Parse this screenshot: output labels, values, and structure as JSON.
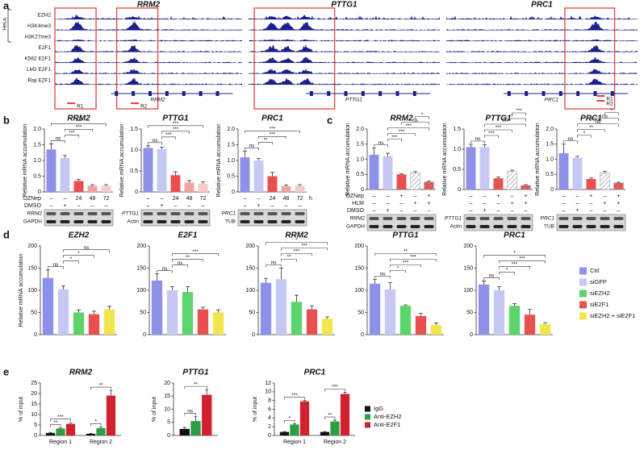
{
  "panel_labels": [
    "a",
    "b",
    "c",
    "d",
    "e"
  ],
  "panel_a": {
    "cell_line": "HeLa",
    "tracks": [
      "EZH2",
      "H3K4me3",
      "H3K27me3",
      "E2F1",
      "K562 E2F1",
      "LM2 E2F1",
      "Raji E2F1"
    ],
    "loci": [
      {
        "title": "RRM2",
        "gene": "RRM2",
        "regions": [
          "R1",
          "R2"
        ]
      },
      {
        "title": "PTTG1",
        "gene": "PTTG1"
      },
      {
        "title": "PRC1",
        "gene": "PRC1",
        "regions": [
          "R1",
          "R2"
        ]
      }
    ]
  },
  "legend_d": [
    {
      "name": "Ctrl",
      "color": "#8e91ea"
    },
    {
      "name": "siGFP",
      "color": "#c6c8f4"
    },
    {
      "name": "siEZH2",
      "color": "#5cd66c"
    },
    {
      "name": "siE2F1",
      "color": "#e8504f"
    },
    {
      "name": "siEZH2 + siE2F1",
      "color": "#f2e64c"
    }
  ],
  "legend_e": [
    {
      "name": "IgG",
      "color": "#111111"
    },
    {
      "name": "Anti-EZH2",
      "color": "#2e9e44"
    },
    {
      "name": "Anti-E2F1",
      "color": "#d1202f"
    }
  ],
  "chart_data": [
    {
      "type": "bar",
      "title": "RRM2",
      "y_label": "Relative mRNA accumulation",
      "values": [
        1.35,
        1.08,
        0.35,
        0.2,
        0.2
      ],
      "errors": [
        0.18,
        0.08,
        0.05,
        0.03,
        0.03
      ],
      "colors": [
        "#8e91ea",
        "#c6c8f4",
        "#e8504f",
        "#f3a19e",
        "#f8cbc8"
      ],
      "ylim": [
        0,
        2
      ],
      "yticks": [
        0,
        0.5,
        {
          "value": 1,
          "label": "1.0"
        },
        1.5,
        {
          "value": 2,
          "label": "2.0"
        }
      ],
      "annotations": [
        {
          "label": "ns",
          "pair": [
            0,
            1
          ]
        },
        {
          "label": "***",
          "pair": [
            1,
            2
          ]
        },
        {
          "label": "***",
          "pair": [
            1,
            3
          ]
        },
        {
          "label": "***",
          "pair": [
            0,
            4
          ]
        }
      ],
      "condition_names": [
        "DZNep",
        "DMSO"
      ],
      "conditions": [
        [
          "–",
          "–",
          "24",
          "48",
          "72"
        ],
        [
          "–",
          "+",
          "–",
          "–",
          "–"
        ]
      ],
      "blot_labels": [
        "RRM2",
        "GAPDH"
      ]
    },
    {
      "type": "bar",
      "title": "PTTG1",
      "y_label": "Relative mRNA accumulation",
      "values": [
        1.05,
        1.02,
        0.4,
        0.22,
        0.2
      ],
      "errors": [
        0.05,
        0.05,
        0.08,
        0.05,
        0.04
      ],
      "colors": [
        "#8e91ea",
        "#c6c8f4",
        "#e8504f",
        "#f3a19e",
        "#f8cbc8"
      ],
      "ylim": [
        0,
        1.5
      ],
      "yticks": [
        0,
        0.5,
        {
          "value": 1,
          "label": "1.0"
        },
        1.5
      ],
      "annotations": [
        {
          "label": "ns",
          "pair": [
            0,
            1
          ]
        },
        {
          "label": "***",
          "pair": [
            1,
            2
          ]
        },
        {
          "label": "***",
          "pair": [
            1,
            3
          ]
        },
        {
          "label": "***",
          "pair": [
            0,
            4
          ]
        }
      ],
      "conditions": [
        [
          "–",
          "–",
          "24",
          "48",
          "72"
        ],
        [
          "–",
          "+",
          "–",
          "–",
          "–"
        ]
      ],
      "blot_labels": [
        "PTTG1",
        "Actin"
      ]
    },
    {
      "type": "bar",
      "title": "PRC1",
      "y_label": "Relative mRNA accumulation",
      "values": [
        1.1,
        1.0,
        0.5,
        0.18,
        0.2
      ],
      "errors": [
        0.2,
        0.06,
        0.12,
        0.04,
        0.03
      ],
      "colors": [
        "#8e91ea",
        "#c6c8f4",
        "#e8504f",
        "#f3a19e",
        "#f8cbc8"
      ],
      "ylim": [
        0,
        2
      ],
      "yticks": [
        0,
        0.5,
        {
          "value": 1,
          "label": "1.0"
        },
        1.5,
        {
          "value": 2,
          "label": "2.0"
        }
      ],
      "annotations": [
        {
          "label": "ns",
          "pair": [
            0,
            1
          ]
        },
        {
          "label": "**",
          "pair": [
            1,
            2
          ]
        },
        {
          "label": "***",
          "pair": [
            1,
            3
          ]
        },
        {
          "label": "***",
          "pair": [
            0,
            4
          ]
        }
      ],
      "conditions": [
        [
          "–",
          "–",
          "24",
          "48",
          "72"
        ],
        [
          "–",
          "+",
          "–",
          "–",
          "–"
        ]
      ],
      "condition_unit": "h",
      "blot_labels": [
        "PRC1",
        "TUB"
      ]
    },
    {
      "type": "bar",
      "title": "RRM2",
      "y_label": "Relative mRNA accumulation",
      "values": [
        1.15,
        1.1,
        0.5,
        0.55,
        0.25
      ],
      "errors": [
        0.22,
        0.1,
        0.02,
        0.04,
        0.03
      ],
      "colors": [
        "#8e91ea",
        "#c6c8f4",
        "#e8504f",
        "#ffffff",
        "#e8504f"
      ],
      "hatched": [
        false,
        false,
        false,
        true,
        true
      ],
      "ylim": [
        0,
        2
      ],
      "yticks": [
        0,
        0.5,
        {
          "value": 1,
          "label": "1.0"
        },
        1.5,
        {
          "value": 2,
          "label": "2.0"
        }
      ],
      "annotations": [
        {
          "label": "ns",
          "pair": [
            0,
            1
          ]
        },
        {
          "label": "***",
          "pair": [
            1,
            2
          ]
        },
        {
          "label": "***",
          "pair": [
            1,
            3
          ]
        },
        {
          "label": "***",
          "pair": [
            1,
            4
          ]
        },
        {
          "label": "ns",
          "pair": [
            2,
            4
          ]
        },
        {
          "label": "*",
          "pair": [
            3,
            4
          ]
        }
      ],
      "condition_names": [
        "DZNep",
        "HLM",
        "DMSO"
      ],
      "conditions": [
        [
          "–",
          "–",
          "+",
          "–",
          "+"
        ],
        [
          "–",
          "–",
          "–",
          "+",
          "+"
        ],
        [
          "–",
          "+",
          "–",
          "–",
          "–"
        ]
      ],
      "blot_labels": [
        "RRM2",
        "GAPDH"
      ]
    },
    {
      "type": "bar",
      "title": "PTTG1",
      "y_label": "Relative mRNA accumulation",
      "values": [
        1.05,
        1.05,
        0.28,
        0.45,
        0.1
      ],
      "errors": [
        0.07,
        0.06,
        0.03,
        0.03,
        0.02
      ],
      "colors": [
        "#8e91ea",
        "#c6c8f4",
        "#e8504f",
        "#ffffff",
        "#e8504f"
      ],
      "hatched": [
        false,
        false,
        false,
        true,
        true
      ],
      "ylim": [
        0,
        1.5
      ],
      "yticks": [
        0,
        0.5,
        {
          "value": 1,
          "label": "1.0"
        },
        1.5
      ],
      "annotations": [
        {
          "label": "ns",
          "pair": [
            0,
            1
          ]
        },
        {
          "label": "***",
          "pair": [
            1,
            2
          ]
        },
        {
          "label": "***",
          "pair": [
            1,
            3
          ]
        },
        {
          "label": "***",
          "pair": [
            1,
            4
          ]
        },
        {
          "label": "*",
          "pair": [
            2,
            4
          ]
        },
        {
          "label": "***",
          "pair": [
            3,
            4
          ]
        }
      ],
      "conditions": [
        [
          "–",
          "–",
          "+",
          "–",
          "+"
        ],
        [
          "–",
          "–",
          "–",
          "+",
          "+"
        ],
        [
          "–",
          "+",
          "–",
          "–",
          "–"
        ]
      ],
      "blot_labels": [
        "PTTG1",
        "Actin"
      ]
    },
    {
      "type": "bar",
      "title": "PRC1",
      "y_label": "Relative mRNA accumulation",
      "values": [
        1.2,
        1.05,
        0.35,
        0.55,
        0.22
      ],
      "errors": [
        0.3,
        0.05,
        0.03,
        0.05,
        0.02
      ],
      "colors": [
        "#8e91ea",
        "#c6c8f4",
        "#e8504f",
        "#ffffff",
        "#e8504f"
      ],
      "hatched": [
        false,
        false,
        false,
        true,
        true
      ],
      "ylim": [
        0,
        2
      ],
      "yticks": [
        0,
        0.5,
        {
          "value": 1,
          "label": "1.0"
        },
        1.5,
        {
          "value": 2,
          "label": "2.0"
        }
      ],
      "annotations": [
        {
          "label": "ns",
          "pair": [
            0,
            1
          ]
        },
        {
          "label": "*",
          "pair": [
            1,
            2
          ]
        },
        {
          "label": "**",
          "pair": [
            1,
            3
          ]
        },
        {
          "label": "ns",
          "pair": [
            1,
            4
          ]
        },
        {
          "label": "ns",
          "pair": [
            2,
            4
          ]
        },
        {
          "label": "*",
          "pair": [
            3,
            4
          ]
        }
      ],
      "conditions": [
        [
          "–",
          "–",
          "+",
          "–",
          "+"
        ],
        [
          "–",
          "–",
          "–",
          "+",
          "+"
        ],
        [
          "–",
          "+",
          "–",
          "–",
          "–"
        ]
      ],
      "blot_labels": [
        "PRC1",
        "TUB"
      ]
    },
    {
      "type": "bar",
      "title": "EZH2",
      "y_label": "Relative mRNA accumulation",
      "values": [
        128,
        102,
        50,
        46,
        57
      ],
      "errors": [
        18,
        8,
        6,
        7,
        7
      ],
      "colors": [
        "#8e91ea",
        "#c6c8f4",
        "#5cd66c",
        "#e8504f",
        "#f2e64c"
      ],
      "ylim": [
        0,
        200
      ],
      "yticks": [
        0,
        50,
        100,
        150,
        200
      ],
      "annotations": [
        {
          "label": "ns",
          "pair": [
            0,
            1
          ]
        },
        {
          "label": "*",
          "pair": [
            1,
            2
          ]
        },
        {
          "label": "*",
          "pair": [
            1,
            3
          ]
        },
        {
          "label": "ns",
          "pair": [
            1,
            4
          ]
        }
      ]
    },
    {
      "type": "bar",
      "title": "E2F1",
      "values": [
        122,
        100,
        96,
        57,
        50
      ],
      "errors": [
        15,
        8,
        12,
        5,
        6
      ],
      "colors": [
        "#8e91ea",
        "#c6c8f4",
        "#5cd66c",
        "#e8504f",
        "#f2e64c"
      ],
      "ylim": [
        0,
        200
      ],
      "yticks": [
        0,
        50,
        100,
        150,
        200
      ],
      "annotations": [
        {
          "label": "ns",
          "pair": [
            0,
            1
          ]
        },
        {
          "label": "ns",
          "pair": [
            1,
            2
          ]
        },
        {
          "label": "**",
          "pair": [
            1,
            3
          ]
        },
        {
          "label": "***",
          "pair": [
            1,
            4
          ]
        }
      ]
    },
    {
      "type": "bar",
      "title": "RRM2",
      "values": [
        117,
        125,
        74,
        57,
        36
      ],
      "errors": [
        10,
        25,
        15,
        8,
        4
      ],
      "colors": [
        "#8e91ea",
        "#c6c8f4",
        "#5cd66c",
        "#e8504f",
        "#f2e64c"
      ],
      "ylim": [
        0,
        200
      ],
      "yticks": [
        0,
        50,
        100,
        150,
        200
      ],
      "annotations": [
        {
          "label": "ns",
          "pair": [
            0,
            1
          ]
        },
        {
          "label": "**",
          "pair": [
            1,
            2
          ]
        },
        {
          "label": "***",
          "pair": [
            1,
            3
          ]
        },
        {
          "label": "***",
          "pair": [
            1,
            4
          ]
        },
        {
          "label": "*",
          "pair": [
            0,
            4
          ]
        }
      ]
    },
    {
      "type": "bar",
      "title": "PTTG1",
      "values": [
        115,
        102,
        65,
        42,
        22
      ],
      "errors": [
        10,
        15,
        2,
        6,
        4
      ],
      "colors": [
        "#8e91ea",
        "#c6c8f4",
        "#5cd66c",
        "#e8504f",
        "#f2e64c"
      ],
      "ylim": [
        0,
        200
      ],
      "yticks": [
        0,
        50,
        100,
        150,
        200
      ],
      "annotations": [
        {
          "label": "ns",
          "pair": [
            0,
            1
          ]
        },
        {
          "label": "*",
          "pair": [
            1,
            2
          ]
        },
        {
          "label": "***",
          "pair": [
            1,
            3
          ]
        },
        {
          "label": "***",
          "pair": [
            1,
            4
          ]
        },
        {
          "label": "**",
          "pair": [
            0,
            4
          ]
        }
      ]
    },
    {
      "type": "bar",
      "title": "PRC1",
      "values": [
        113,
        100,
        65,
        45,
        24
      ],
      "errors": [
        8,
        8,
        5,
        12,
        3
      ],
      "colors": [
        "#8e91ea",
        "#c6c8f4",
        "#5cd66c",
        "#e8504f",
        "#f2e64c"
      ],
      "ylim": [
        0,
        200
      ],
      "yticks": [
        0,
        50,
        100,
        150,
        200
      ],
      "annotations": [
        {
          "label": "ns",
          "pair": [
            0,
            1
          ]
        },
        {
          "label": "*",
          "pair": [
            1,
            2
          ]
        },
        {
          "label": "***",
          "pair": [
            1,
            3
          ]
        },
        {
          "label": "***",
          "pair": [
            1,
            4
          ]
        },
        {
          "label": "*",
          "pair": [
            0,
            4
          ]
        }
      ]
    },
    {
      "type": "grouped_bar",
      "title": "RRM2",
      "y_label": "% of input",
      "categories": [
        "Region 1",
        "Region 2"
      ],
      "series": [
        {
          "color": "#111111",
          "values": [
            1.2,
            0.8
          ],
          "errors": [
            0.2,
            0.2
          ]
        },
        {
          "color": "#2e9e44",
          "values": [
            3.3,
            3.5
          ],
          "errors": [
            0.3,
            0.6
          ]
        },
        {
          "color": "#d1202f",
          "values": [
            5.5,
            19
          ],
          "errors": [
            0.4,
            2.5
          ]
        }
      ],
      "ylim": [
        0,
        25
      ],
      "yticks": [
        0,
        5,
        10,
        15,
        20,
        25
      ],
      "annotations": [
        {
          "label": "**",
          "category": 0,
          "pair": [
            0,
            1
          ]
        },
        {
          "label": "***",
          "category": 0,
          "pair": [
            0,
            2
          ]
        },
        {
          "label": "*",
          "category": 1,
          "pair": [
            0,
            1
          ]
        },
        {
          "label": "**",
          "category": 1,
          "pair": [
            0,
            2
          ]
        }
      ]
    },
    {
      "type": "grouped_bar",
      "title": "PTTG1",
      "y_label": "% of input",
      "categories": [
        null
      ],
      "series": [
        {
          "color": "#111111",
          "values": [
            2.5
          ],
          "errors": [
            0.6
          ]
        },
        {
          "color": "#2e9e44",
          "values": [
            5.5
          ],
          "errors": [
            1.8
          ]
        },
        {
          "color": "#d1202f",
          "values": [
            15.5
          ],
          "errors": [
            2
          ]
        }
      ],
      "ylim": [
        0,
        20
      ],
      "yticks": [
        0,
        5,
        10,
        15,
        20
      ],
      "annotations": [
        {
          "label": "ns",
          "category": 0,
          "pair": [
            0,
            1
          ]
        },
        {
          "label": "**",
          "category": 0,
          "pair": [
            0,
            2
          ]
        }
      ]
    },
    {
      "type": "grouped_bar",
      "title": "PRC1",
      "y_label": "% of input",
      "categories": [
        "Region 1",
        "Region 2"
      ],
      "series": [
        {
          "color": "#111111",
          "values": [
            0.8,
            0.8
          ],
          "errors": [
            0.1,
            0.1
          ]
        },
        {
          "color": "#2e9e44",
          "values": [
            2.5,
            3.2
          ],
          "errors": [
            0.2,
            0.3
          ]
        },
        {
          "color": "#d1202f",
          "values": [
            7.8,
            9.5
          ],
          "errors": [
            0.2,
            0.4
          ]
        }
      ],
      "ylim": [
        0,
        12
      ],
      "yticks": [
        0,
        2,
        4,
        6,
        8,
        10,
        12
      ],
      "annotations": [
        {
          "label": "*",
          "category": 0,
          "pair": [
            0,
            1
          ]
        },
        {
          "label": "***",
          "category": 0,
          "pair": [
            0,
            2
          ]
        },
        {
          "label": "**",
          "category": 1,
          "pair": [
            0,
            1
          ]
        },
        {
          "label": "***",
          "category": 1,
          "pair": [
            0,
            2
          ]
        }
      ]
    }
  ]
}
